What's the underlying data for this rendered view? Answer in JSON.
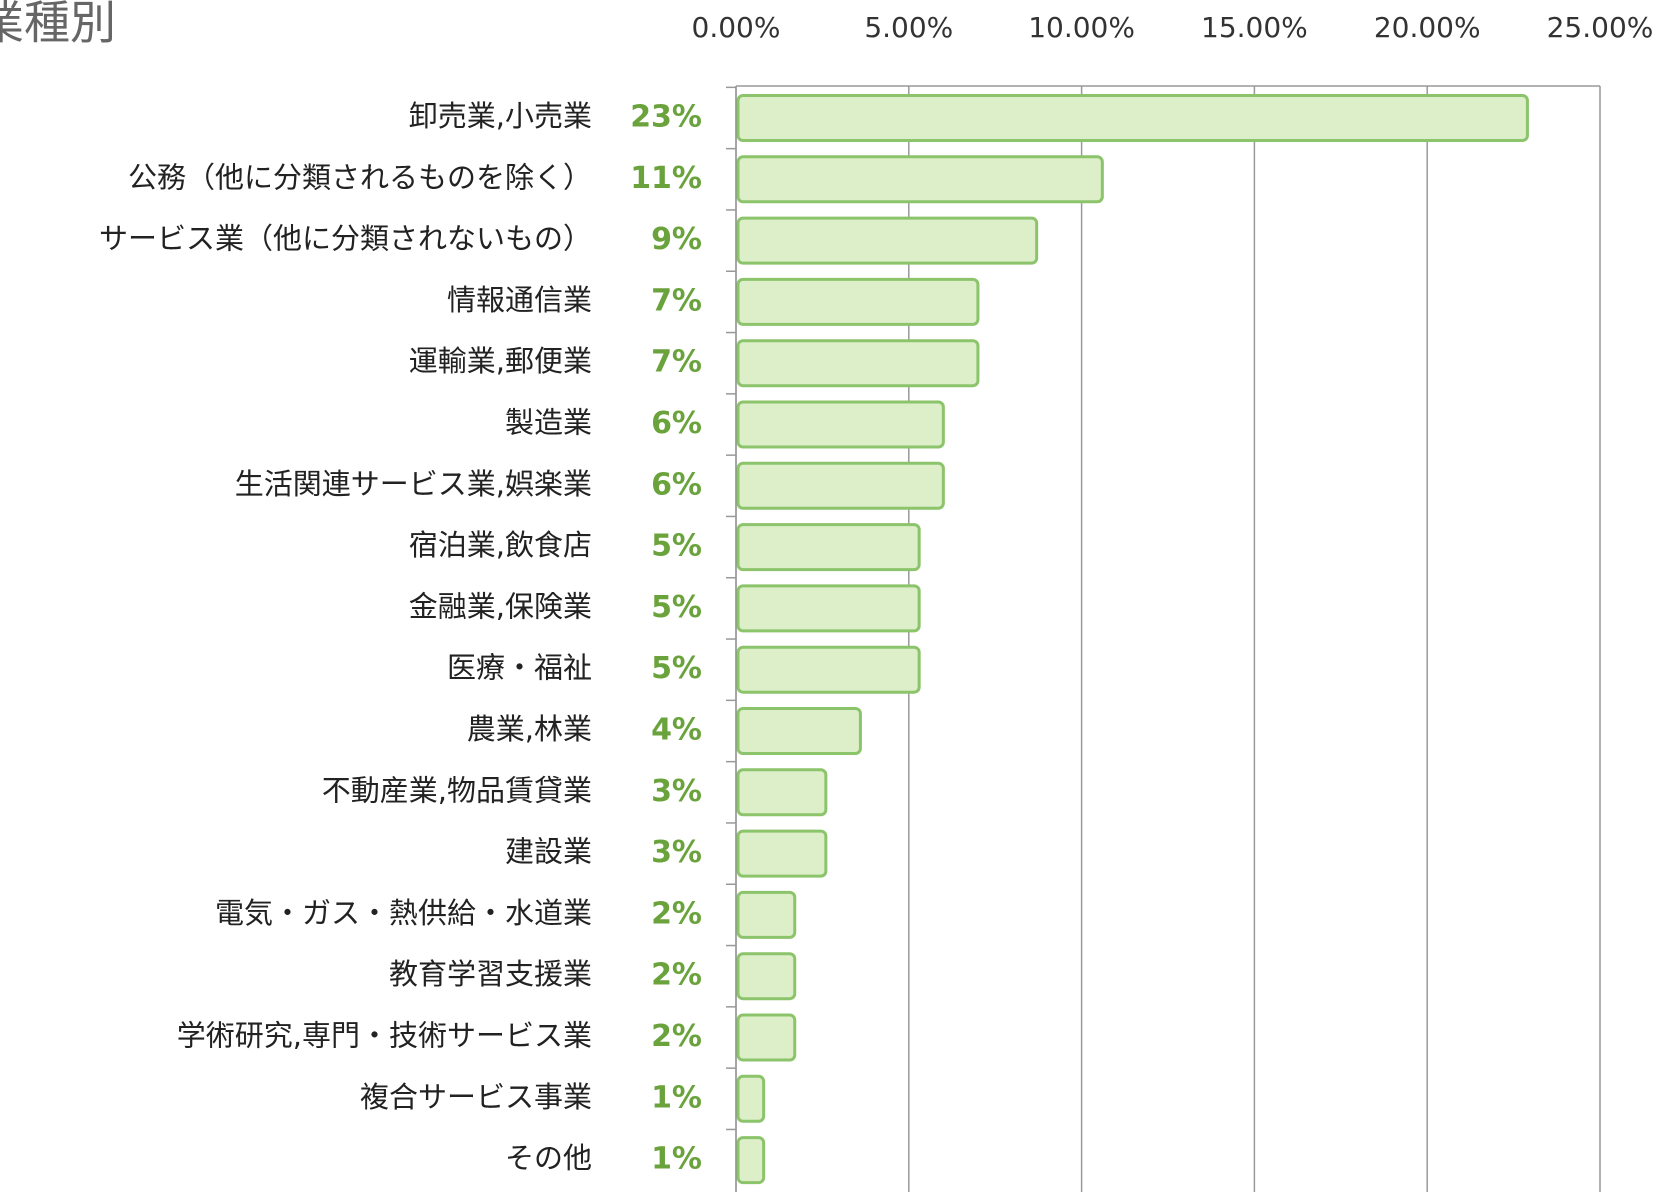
{
  "chart_data": {
    "type": "hbar",
    "title": "業種別",
    "categories": [
      "卸売業,小売業",
      "公務（他に分類されるものを除く）",
      "サービス業（他に分類されないもの）",
      "情報通信業",
      "運輸業,郵便業",
      "製造業",
      "生活関連サービス業,娯楽業",
      "宿泊業,飲食店",
      "金融業,保険業",
      "医療・福祉",
      "農業,林業",
      "不動産業,物品賃貸業",
      "建設業",
      "電気・ガス・熱供給・水道業",
      "教育学習支援業",
      "学術研究,専門・技術サービス業",
      "複合サービス事業",
      "その他"
    ],
    "values": [
      22.9,
      10.6,
      8.7,
      7.0,
      7.0,
      6.0,
      6.0,
      5.3,
      5.3,
      5.3,
      3.6,
      2.6,
      2.6,
      1.7,
      1.7,
      1.7,
      0.8,
      0.8
    ],
    "value_labels": [
      "23%",
      "11%",
      "9%",
      "7%",
      "7%",
      "6%",
      "6%",
      "5%",
      "5%",
      "5%",
      "4%",
      "3%",
      "3%",
      "2%",
      "2%",
      "2%",
      "1%",
      "1%"
    ],
    "color": "#dcefc8",
    "xlim": [
      0,
      25
    ],
    "xticks": [
      {
        "value": 0,
        "label": "0.00%"
      },
      {
        "value": 5,
        "label": "5.00%"
      },
      {
        "value": 10,
        "label": "10.00%"
      },
      {
        "value": 15,
        "label": "15.00%"
      },
      {
        "value": 20,
        "label": "20.00%"
      },
      {
        "value": 25,
        "label": "25.00%"
      }
    ],
    "grid": true
  }
}
